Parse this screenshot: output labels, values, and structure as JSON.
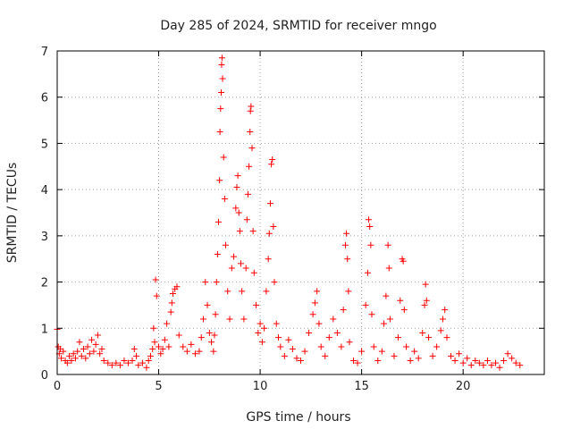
{
  "chart_data": {
    "type": "scatter",
    "title": "Day 285 of 2024, SRMTID for receiver mngo",
    "xlabel": "GPS time / hours",
    "ylabel": "SRMTID / TECUs",
    "xlim": [
      0,
      24
    ],
    "ylim": [
      0,
      7
    ],
    "xticks": [
      0,
      5,
      10,
      15,
      20
    ],
    "yticks": [
      0,
      1,
      2,
      3,
      4,
      5,
      6,
      7
    ],
    "grid": true,
    "marker": "plus",
    "color": "#ff0000",
    "series": [
      {
        "name": "SRMTID",
        "points": [
          [
            0.0,
            0.98
          ],
          [
            0.05,
            0.6
          ],
          [
            0.1,
            0.45
          ],
          [
            0.15,
            0.55
          ],
          [
            0.2,
            0.35
          ],
          [
            0.3,
            0.5
          ],
          [
            0.4,
            0.3
          ],
          [
            0.5,
            0.25
          ],
          [
            0.6,
            0.4
          ],
          [
            0.7,
            0.3
          ],
          [
            0.8,
            0.45
          ],
          [
            0.9,
            0.35
          ],
          [
            1.0,
            0.5
          ],
          [
            1.1,
            0.7
          ],
          [
            1.2,
            0.4
          ],
          [
            1.3,
            0.55
          ],
          [
            1.4,
            0.35
          ],
          [
            1.5,
            0.6
          ],
          [
            1.6,
            0.45
          ],
          [
            1.7,
            0.75
          ],
          [
            1.8,
            0.5
          ],
          [
            1.9,
            0.65
          ],
          [
            2.0,
            0.85
          ],
          [
            2.1,
            0.45
          ],
          [
            2.2,
            0.55
          ],
          [
            2.3,
            0.3
          ],
          [
            2.5,
            0.25
          ],
          [
            2.7,
            0.2
          ],
          [
            2.9,
            0.25
          ],
          [
            3.1,
            0.2
          ],
          [
            3.3,
            0.3
          ],
          [
            3.5,
            0.25
          ],
          [
            3.7,
            0.3
          ],
          [
            3.8,
            0.55
          ],
          [
            3.9,
            0.4
          ],
          [
            4.0,
            0.2
          ],
          [
            4.2,
            0.25
          ],
          [
            4.4,
            0.15
          ],
          [
            4.5,
            0.3
          ],
          [
            4.6,
            0.4
          ],
          [
            4.7,
            0.55
          ],
          [
            4.75,
            1.0
          ],
          [
            4.8,
            0.7
          ],
          [
            4.85,
            2.05
          ],
          [
            4.9,
            1.7
          ],
          [
            5.0,
            0.6
          ],
          [
            5.1,
            0.45
          ],
          [
            5.2,
            0.55
          ],
          [
            5.3,
            0.75
          ],
          [
            5.4,
            1.1
          ],
          [
            5.5,
            0.6
          ],
          [
            5.6,
            1.35
          ],
          [
            5.65,
            1.55
          ],
          [
            5.7,
            1.75
          ],
          [
            5.8,
            1.85
          ],
          [
            5.9,
            1.9
          ],
          [
            6.0,
            0.85
          ],
          [
            6.2,
            0.6
          ],
          [
            6.4,
            0.5
          ],
          [
            6.6,
            0.65
          ],
          [
            6.8,
            0.45
          ],
          [
            7.0,
            0.5
          ],
          [
            7.1,
            0.8
          ],
          [
            7.2,
            1.2
          ],
          [
            7.3,
            2.0
          ],
          [
            7.4,
            1.5
          ],
          [
            7.5,
            0.9
          ],
          [
            7.6,
            0.7
          ],
          [
            7.7,
            0.5
          ],
          [
            7.75,
            0.85
          ],
          [
            7.8,
            1.3
          ],
          [
            7.85,
            2.0
          ],
          [
            7.9,
            2.6
          ],
          [
            7.95,
            3.3
          ],
          [
            8.0,
            4.2
          ],
          [
            8.02,
            5.25
          ],
          [
            8.05,
            5.75
          ],
          [
            8.08,
            6.1
          ],
          [
            8.1,
            6.7
          ],
          [
            8.12,
            6.85
          ],
          [
            8.15,
            6.4
          ],
          [
            8.2,
            4.7
          ],
          [
            8.25,
            3.8
          ],
          [
            8.3,
            2.8
          ],
          [
            8.4,
            1.8
          ],
          [
            8.5,
            1.2
          ],
          [
            8.6,
            2.3
          ],
          [
            8.7,
            2.55
          ],
          [
            8.8,
            3.6
          ],
          [
            8.85,
            4.05
          ],
          [
            8.9,
            4.3
          ],
          [
            8.95,
            3.5
          ],
          [
            9.0,
            3.1
          ],
          [
            9.05,
            2.4
          ],
          [
            9.1,
            1.8
          ],
          [
            9.2,
            1.2
          ],
          [
            9.3,
            2.3
          ],
          [
            9.35,
            3.35
          ],
          [
            9.4,
            3.9
          ],
          [
            9.45,
            4.5
          ],
          [
            9.5,
            5.25
          ],
          [
            9.52,
            5.7
          ],
          [
            9.55,
            5.8
          ],
          [
            9.6,
            4.9
          ],
          [
            9.65,
            3.1
          ],
          [
            9.7,
            2.2
          ],
          [
            9.8,
            1.5
          ],
          [
            9.9,
            0.9
          ],
          [
            10.0,
            1.1
          ],
          [
            10.1,
            0.7
          ],
          [
            10.2,
            1.0
          ],
          [
            10.3,
            1.8
          ],
          [
            10.4,
            2.5
          ],
          [
            10.45,
            3.05
          ],
          [
            10.5,
            3.7
          ],
          [
            10.55,
            4.55
          ],
          [
            10.6,
            4.65
          ],
          [
            10.65,
            3.2
          ],
          [
            10.7,
            2.0
          ],
          [
            10.8,
            1.1
          ],
          [
            10.9,
            0.8
          ],
          [
            11.0,
            0.6
          ],
          [
            11.2,
            0.4
          ],
          [
            11.4,
            0.75
          ],
          [
            11.6,
            0.55
          ],
          [
            11.8,
            0.35
          ],
          [
            12.0,
            0.3
          ],
          [
            12.2,
            0.5
          ],
          [
            12.4,
            0.9
          ],
          [
            12.6,
            1.3
          ],
          [
            12.7,
            1.55
          ],
          [
            12.8,
            1.8
          ],
          [
            12.9,
            1.1
          ],
          [
            13.0,
            0.6
          ],
          [
            13.2,
            0.4
          ],
          [
            13.4,
            0.8
          ],
          [
            13.6,
            1.2
          ],
          [
            13.8,
            0.9
          ],
          [
            14.0,
            0.6
          ],
          [
            14.1,
            1.4
          ],
          [
            14.2,
            2.8
          ],
          [
            14.25,
            3.05
          ],
          [
            14.3,
            2.5
          ],
          [
            14.35,
            1.8
          ],
          [
            14.4,
            0.7
          ],
          [
            14.6,
            0.3
          ],
          [
            14.8,
            0.25
          ],
          [
            15.0,
            0.5
          ],
          [
            15.2,
            1.5
          ],
          [
            15.3,
            2.2
          ],
          [
            15.35,
            3.35
          ],
          [
            15.4,
            3.2
          ],
          [
            15.45,
            2.8
          ],
          [
            15.5,
            1.3
          ],
          [
            15.6,
            0.6
          ],
          [
            15.8,
            0.3
          ],
          [
            16.0,
            0.5
          ],
          [
            16.1,
            1.1
          ],
          [
            16.2,
            1.7
          ],
          [
            16.3,
            2.8
          ],
          [
            16.35,
            2.3
          ],
          [
            16.4,
            1.2
          ],
          [
            16.6,
            0.4
          ],
          [
            16.8,
            0.8
          ],
          [
            16.9,
            1.6
          ],
          [
            17.0,
            2.5
          ],
          [
            17.05,
            2.45
          ],
          [
            17.1,
            1.4
          ],
          [
            17.2,
            0.6
          ],
          [
            17.4,
            0.3
          ],
          [
            17.6,
            0.5
          ],
          [
            17.8,
            0.35
          ],
          [
            18.0,
            0.9
          ],
          [
            18.1,
            1.5
          ],
          [
            18.15,
            1.95
          ],
          [
            18.2,
            1.6
          ],
          [
            18.3,
            0.8
          ],
          [
            18.5,
            0.4
          ],
          [
            18.7,
            0.6
          ],
          [
            18.9,
            0.95
          ],
          [
            19.0,
            1.2
          ],
          [
            19.1,
            1.4
          ],
          [
            19.2,
            0.8
          ],
          [
            19.4,
            0.4
          ],
          [
            19.6,
            0.3
          ],
          [
            19.8,
            0.45
          ],
          [
            20.0,
            0.25
          ],
          [
            20.2,
            0.35
          ],
          [
            20.4,
            0.2
          ],
          [
            20.6,
            0.3
          ],
          [
            20.8,
            0.25
          ],
          [
            21.0,
            0.2
          ],
          [
            21.2,
            0.3
          ],
          [
            21.4,
            0.2
          ],
          [
            21.6,
            0.25
          ],
          [
            21.8,
            0.15
          ],
          [
            22.0,
            0.3
          ],
          [
            22.2,
            0.45
          ],
          [
            22.4,
            0.35
          ],
          [
            22.6,
            0.25
          ],
          [
            22.8,
            0.2
          ]
        ]
      }
    ]
  }
}
